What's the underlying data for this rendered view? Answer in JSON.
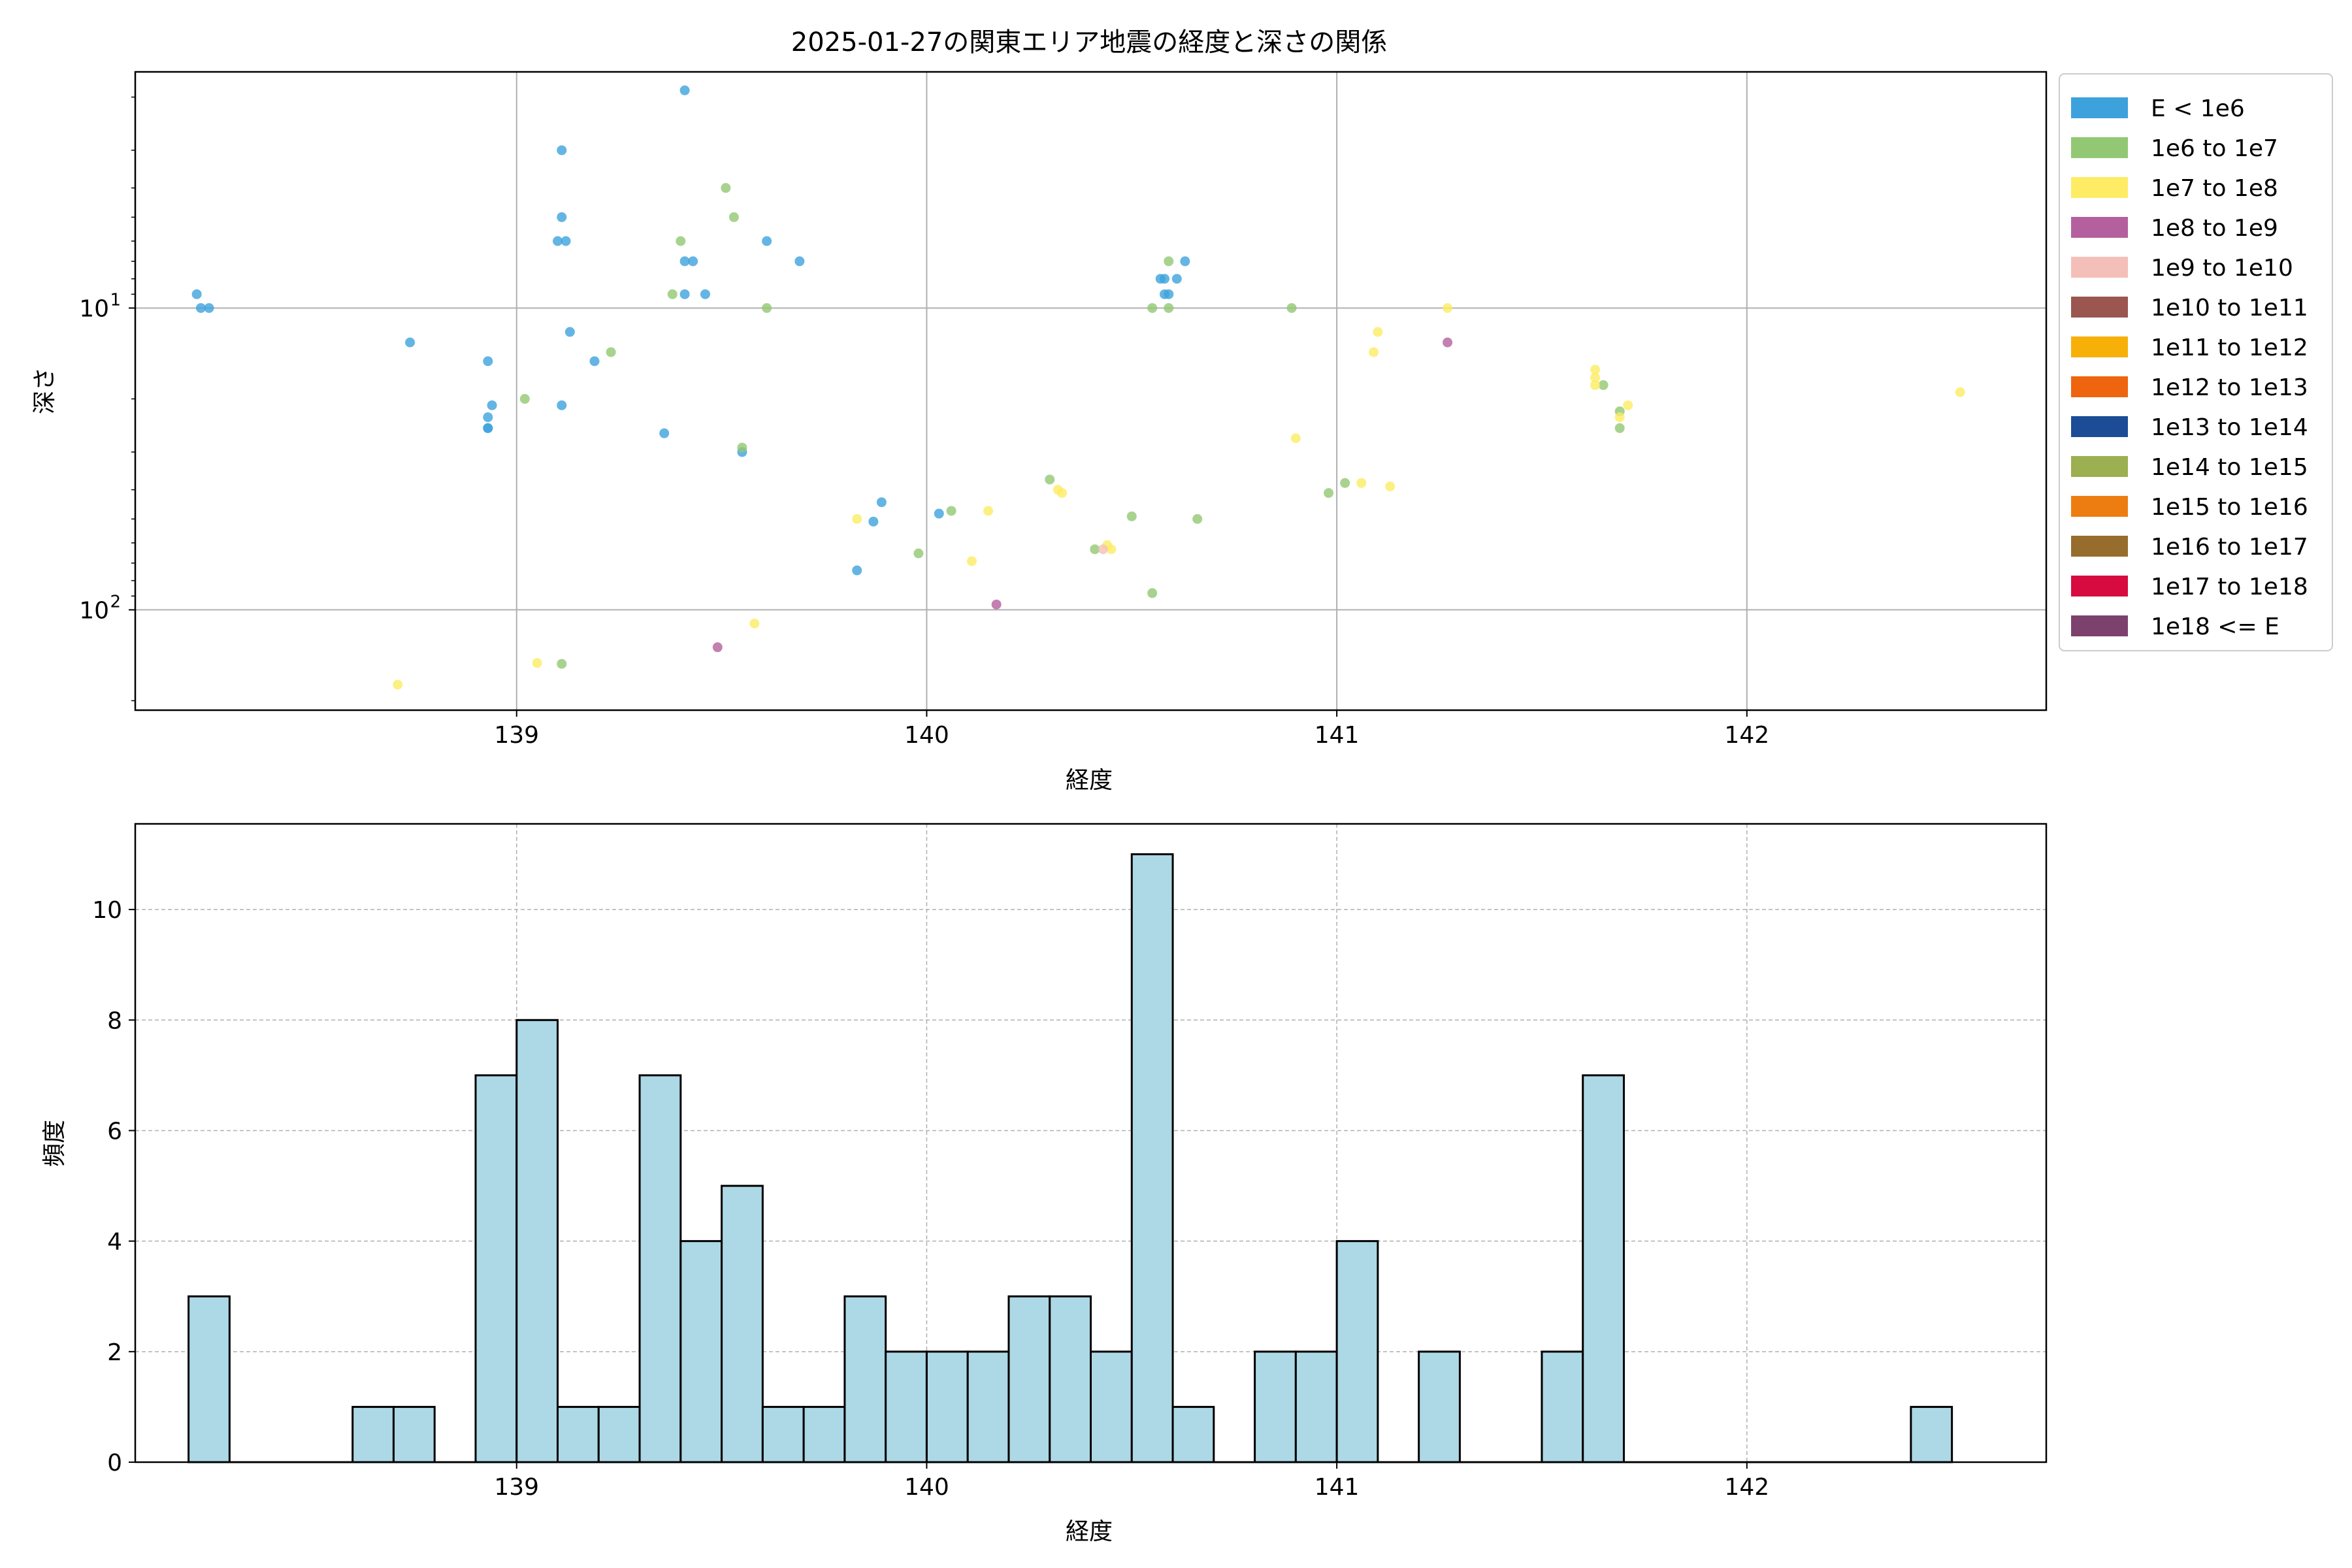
{
  "chart_data": [
    {
      "type": "scatter",
      "title": "2025-01-27の関東エリア地震の経度と深さの関係",
      "xlabel": "経度",
      "ylabel": "深さ",
      "xlim": [
        138.07,
        142.73
      ],
      "ylim": [
        215,
        1.65
      ],
      "y_scale": "log",
      "y_inverted": true,
      "x_ticks": [
        139,
        140,
        141,
        142
      ],
      "y_ticks": [
        {
          "value": 10,
          "base": "10",
          "exp": "1"
        },
        {
          "value": 100,
          "base": "10",
          "exp": "2"
        }
      ],
      "grid": true,
      "legend_position": "outside-right",
      "legend": [
        {
          "label": "E < 1e6",
          "color": "#3da2dc"
        },
        {
          "label": "1e6 to 1e7",
          "color": "#92c873"
        },
        {
          "label": "1e7 to 1e8",
          "color": "#fdec64"
        },
        {
          "label": "1e8 to 1e9",
          "color": "#b4609e"
        },
        {
          "label": "1e9 to 1e10",
          "color": "#f4bfb8"
        },
        {
          "label": "1e10 to 1e11",
          "color": "#9a564f"
        },
        {
          "label": "1e11 to 1e12",
          "color": "#f6b008"
        },
        {
          "label": "1e12 to 1e13",
          "color": "#ef640e"
        },
        {
          "label": "1e13 to 1e14",
          "color": "#1c4c96"
        },
        {
          "label": "1e14 to 1e15",
          "color": "#9caf51"
        },
        {
          "label": "1e15 to 1e16",
          "color": "#ee7d11"
        },
        {
          "label": "1e16 to 1e17",
          "color": "#966d2d"
        },
        {
          "label": "1e17 to 1e18",
          "color": "#d70b40"
        },
        {
          "label": "1e18 <= E",
          "color": "#7c426d"
        }
      ],
      "points": [
        {
          "x": 138.22,
          "y": 9,
          "c": 0
        },
        {
          "x": 138.23,
          "y": 10,
          "c": 0
        },
        {
          "x": 138.25,
          "y": 10,
          "c": 0
        },
        {
          "x": 138.74,
          "y": 13,
          "c": 0
        },
        {
          "x": 138.93,
          "y": 15,
          "c": 0
        },
        {
          "x": 138.94,
          "y": 21,
          "c": 0
        },
        {
          "x": 138.93,
          "y": 23,
          "c": 0
        },
        {
          "x": 138.93,
          "y": 25,
          "c": 0
        },
        {
          "x": 138.93,
          "y": 25,
          "c": 0
        },
        {
          "x": 139.11,
          "y": 3,
          "c": 0
        },
        {
          "x": 139.11,
          "y": 5,
          "c": 0
        },
        {
          "x": 139.1,
          "y": 6,
          "c": 0
        },
        {
          "x": 139.12,
          "y": 6,
          "c": 0
        },
        {
          "x": 139.13,
          "y": 12,
          "c": 0
        },
        {
          "x": 139.19,
          "y": 15,
          "c": 0
        },
        {
          "x": 139.11,
          "y": 21,
          "c": 0
        },
        {
          "x": 139.36,
          "y": 26,
          "c": 0
        },
        {
          "x": 139.41,
          "y": 1.9,
          "c": 0
        },
        {
          "x": 139.41,
          "y": 7,
          "c": 0
        },
        {
          "x": 139.43,
          "y": 7,
          "c": 0
        },
        {
          "x": 139.41,
          "y": 9,
          "c": 0
        },
        {
          "x": 139.46,
          "y": 9,
          "c": 0
        },
        {
          "x": 139.61,
          "y": 6,
          "c": 0
        },
        {
          "x": 139.69,
          "y": 7,
          "c": 0
        },
        {
          "x": 139.55,
          "y": 30,
          "c": 0
        },
        {
          "x": 139.89,
          "y": 44,
          "c": 0
        },
        {
          "x": 139.87,
          "y": 51,
          "c": 0
        },
        {
          "x": 139.83,
          "y": 74,
          "c": 0
        },
        {
          "x": 140.03,
          "y": 48,
          "c": 0
        },
        {
          "x": 140.57,
          "y": 8,
          "c": 0
        },
        {
          "x": 140.58,
          "y": 8,
          "c": 0
        },
        {
          "x": 140.58,
          "y": 9,
          "c": 0
        },
        {
          "x": 140.61,
          "y": 8,
          "c": 0
        },
        {
          "x": 140.63,
          "y": 7,
          "c": 0
        },
        {
          "x": 140.59,
          "y": 9,
          "c": 0
        },
        {
          "x": 139.02,
          "y": 20,
          "c": 1
        },
        {
          "x": 139.23,
          "y": 14,
          "c": 1
        },
        {
          "x": 139.38,
          "y": 9,
          "c": 1
        },
        {
          "x": 139.4,
          "y": 6,
          "c": 1
        },
        {
          "x": 139.51,
          "y": 4,
          "c": 1
        },
        {
          "x": 139.53,
          "y": 5,
          "c": 1
        },
        {
          "x": 139.61,
          "y": 10,
          "c": 1
        },
        {
          "x": 139.55,
          "y": 29,
          "c": 1
        },
        {
          "x": 139.11,
          "y": 151,
          "c": 1
        },
        {
          "x": 139.98,
          "y": 65,
          "c": 1
        },
        {
          "x": 140.06,
          "y": 47,
          "c": 1
        },
        {
          "x": 140.3,
          "y": 37,
          "c": 1
        },
        {
          "x": 140.41,
          "y": 63,
          "c": 1
        },
        {
          "x": 140.5,
          "y": 49,
          "c": 1
        },
        {
          "x": 140.55,
          "y": 88,
          "c": 1
        },
        {
          "x": 140.55,
          "y": 10,
          "c": 1
        },
        {
          "x": 140.59,
          "y": 7,
          "c": 1
        },
        {
          "x": 140.59,
          "y": 10,
          "c": 1
        },
        {
          "x": 140.66,
          "y": 50,
          "c": 1
        },
        {
          "x": 140.89,
          "y": 10,
          "c": 1
        },
        {
          "x": 140.98,
          "y": 41,
          "c": 1
        },
        {
          "x": 141.02,
          "y": 38,
          "c": 1
        },
        {
          "x": 141.65,
          "y": 18,
          "c": 1
        },
        {
          "x": 141.69,
          "y": 22,
          "c": 1
        },
        {
          "x": 141.69,
          "y": 25,
          "c": 1
        },
        {
          "x": 138.71,
          "y": 177,
          "c": 2
        },
        {
          "x": 139.05,
          "y": 150,
          "c": 2
        },
        {
          "x": 139.58,
          "y": 111,
          "c": 2
        },
        {
          "x": 139.83,
          "y": 50,
          "c": 2
        },
        {
          "x": 140.11,
          "y": 69,
          "c": 2
        },
        {
          "x": 140.15,
          "y": 47,
          "c": 2
        },
        {
          "x": 140.32,
          "y": 40,
          "c": 2
        },
        {
          "x": 140.33,
          "y": 41,
          "c": 2
        },
        {
          "x": 140.44,
          "y": 61,
          "c": 2
        },
        {
          "x": 140.45,
          "y": 63,
          "c": 2
        },
        {
          "x": 140.9,
          "y": 27,
          "c": 2
        },
        {
          "x": 141.06,
          "y": 38,
          "c": 2
        },
        {
          "x": 141.1,
          "y": 12,
          "c": 2
        },
        {
          "x": 141.09,
          "y": 14,
          "c": 2
        },
        {
          "x": 141.13,
          "y": 39,
          "c": 2
        },
        {
          "x": 141.27,
          "y": 10,
          "c": 2
        },
        {
          "x": 141.63,
          "y": 16,
          "c": 2
        },
        {
          "x": 141.63,
          "y": 17,
          "c": 2
        },
        {
          "x": 141.63,
          "y": 18,
          "c": 2
        },
        {
          "x": 141.69,
          "y": 23,
          "c": 2
        },
        {
          "x": 141.71,
          "y": 21,
          "c": 2
        },
        {
          "x": 142.52,
          "y": 19,
          "c": 2
        },
        {
          "x": 139.49,
          "y": 133,
          "c": 3
        },
        {
          "x": 140.17,
          "y": 96,
          "c": 3
        },
        {
          "x": 141.27,
          "y": 13,
          "c": 3
        },
        {
          "x": 140.43,
          "y": 63,
          "c": 4
        }
      ]
    },
    {
      "type": "bar",
      "title": "",
      "xlabel": "経度",
      "ylabel": "頻度",
      "xlim": [
        138.07,
        142.73
      ],
      "ylim": [
        0,
        11.55
      ],
      "x_ticks": [
        139,
        140,
        141,
        142
      ],
      "y_ticks": [
        0,
        2,
        4,
        6,
        8,
        10
      ],
      "grid": true,
      "bar_color": "#add8e6",
      "bar_edge_color": "#000000",
      "bins": [
        {
          "x0": 138.2,
          "x1": 138.3,
          "count": 3
        },
        {
          "x0": 138.6,
          "x1": 138.7,
          "count": 1
        },
        {
          "x0": 138.7,
          "x1": 138.8,
          "count": 1
        },
        {
          "x0": 138.9,
          "x1": 139.0,
          "count": 7
        },
        {
          "x0": 139.0,
          "x1": 139.1,
          "count": 8
        },
        {
          "x0": 139.1,
          "x1": 139.2,
          "count": 1
        },
        {
          "x0": 139.2,
          "x1": 139.3,
          "count": 1
        },
        {
          "x0": 139.3,
          "x1": 139.4,
          "count": 7
        },
        {
          "x0": 139.4,
          "x1": 139.5,
          "count": 4
        },
        {
          "x0": 139.5,
          "x1": 139.6,
          "count": 5
        },
        {
          "x0": 139.6,
          "x1": 139.7,
          "count": 1
        },
        {
          "x0": 139.7,
          "x1": 139.8,
          "count": 1
        },
        {
          "x0": 139.8,
          "x1": 139.9,
          "count": 3
        },
        {
          "x0": 139.9,
          "x1": 140.0,
          "count": 2
        },
        {
          "x0": 140.0,
          "x1": 140.1,
          "count": 2
        },
        {
          "x0": 140.1,
          "x1": 140.2,
          "count": 2
        },
        {
          "x0": 140.2,
          "x1": 140.3,
          "count": 3
        },
        {
          "x0": 140.3,
          "x1": 140.4,
          "count": 3
        },
        {
          "x0": 140.4,
          "x1": 140.5,
          "count": 2
        },
        {
          "x0": 140.5,
          "x1": 140.6,
          "count": 11
        },
        {
          "x0": 140.6,
          "x1": 140.7,
          "count": 1
        },
        {
          "x0": 140.8,
          "x1": 140.9,
          "count": 2
        },
        {
          "x0": 140.9,
          "x1": 141.0,
          "count": 2
        },
        {
          "x0": 141.0,
          "x1": 141.1,
          "count": 4
        },
        {
          "x0": 141.2,
          "x1": 141.3,
          "count": 2
        },
        {
          "x0": 141.5,
          "x1": 141.6,
          "count": 2
        },
        {
          "x0": 141.6,
          "x1": 141.7,
          "count": 7
        },
        {
          "x0": 142.4,
          "x1": 142.5,
          "count": 1
        }
      ]
    }
  ]
}
